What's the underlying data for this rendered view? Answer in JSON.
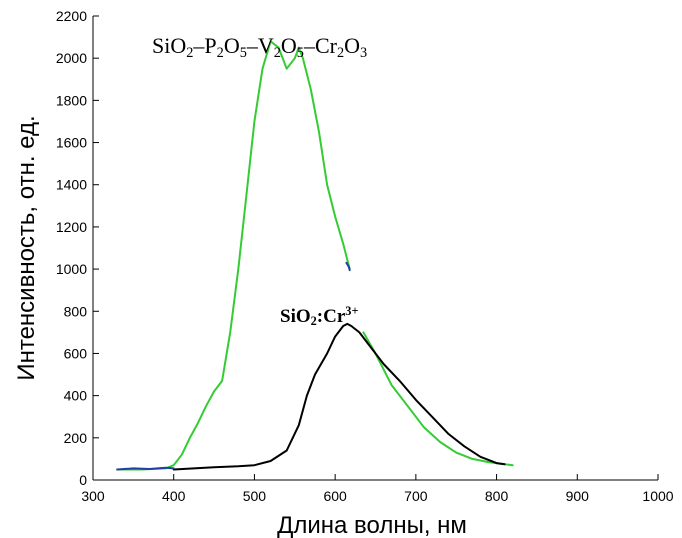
{
  "chart_data": {
    "type": "line",
    "xlabel": "Длина волны, нм",
    "ylabel": "Интенсивность, отн. ед.",
    "xlim": [
      300,
      1000
    ],
    "ylim": [
      0,
      2200
    ],
    "x_ticks": [
      300,
      400,
      500,
      600,
      700,
      800,
      900,
      1000
    ],
    "y_ticks": [
      0,
      200,
      400,
      600,
      800,
      1000,
      1200,
      1400,
      1600,
      1800,
      2000,
      2200
    ],
    "grid": false,
    "colors": {
      "green": "#33cc33",
      "black": "#000000",
      "blue": "#1f3fa6"
    },
    "annotations": {
      "green": "SiO2–P2O5–V2O5–Cr2O3",
      "black": "SiO2:Cr3+"
    },
    "series": [
      {
        "color": "#33cc33",
        "x": [
          330,
          360,
          390,
          400,
          410,
          420,
          430,
          440,
          450,
          460,
          470,
          480,
          490,
          500,
          510,
          520,
          530,
          540,
          550,
          555,
          560,
          570,
          580,
          590,
          600,
          610,
          618
        ],
        "y": [
          50,
          50,
          55,
          70,
          120,
          200,
          270,
          350,
          420,
          470,
          700,
          1000,
          1350,
          1700,
          1950,
          2080,
          2050,
          1950,
          2000,
          2050,
          2000,
          1850,
          1650,
          1400,
          1250,
          1120,
          1000
        ]
      },
      {
        "color": "#33cc33",
        "x": [
          635,
          650,
          670,
          690,
          710,
          730,
          750,
          770,
          790,
          810,
          820
        ],
        "y": [
          700,
          600,
          450,
          350,
          250,
          180,
          130,
          100,
          85,
          75,
          70
        ]
      },
      {
        "color": "#000000",
        "x": [
          400,
          450,
          480,
          500,
          520,
          540,
          555,
          565,
          575,
          590,
          600,
          610,
          615,
          620,
          630,
          640,
          660,
          680,
          700,
          720,
          740,
          760,
          780,
          800,
          810
        ],
        "y": [
          50,
          60,
          65,
          70,
          90,
          140,
          260,
          400,
          500,
          600,
          680,
          730,
          740,
          730,
          700,
          650,
          550,
          470,
          380,
          300,
          220,
          160,
          110,
          80,
          75
        ]
      },
      {
        "color": "#1f3fa6",
        "x": [
          330,
          350,
          370,
          390,
          400
        ],
        "y": [
          50,
          55,
          52,
          58,
          55
        ]
      },
      {
        "color": "#1f3fa6",
        "x": [
          614,
          617,
          618
        ],
        "y": [
          1030,
          1010,
          995
        ]
      }
    ]
  }
}
